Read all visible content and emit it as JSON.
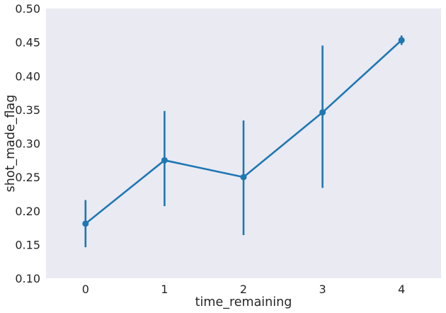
{
  "chart_data": {
    "type": "line",
    "xlabel": "time_remaining",
    "ylabel": "shot_made_flag",
    "categories": [
      "0",
      "1",
      "2",
      "3",
      "4"
    ],
    "ylim": [
      0.1,
      0.5
    ],
    "yticks": [
      "0.10",
      "0.15",
      "0.20",
      "0.25",
      "0.30",
      "0.35",
      "0.40",
      "0.45",
      "0.50"
    ],
    "grid": false,
    "series": [
      {
        "values": [
          0.181,
          0.275,
          0.25,
          0.346,
          0.453
        ],
        "ci_low": [
          0.146,
          0.207,
          0.164,
          0.234,
          0.446
        ],
        "ci_high": [
          0.216,
          0.348,
          0.334,
          0.445,
          0.46
        ],
        "color": "#1f77b4"
      }
    ],
    "background_color": "#eaeaf2"
  }
}
